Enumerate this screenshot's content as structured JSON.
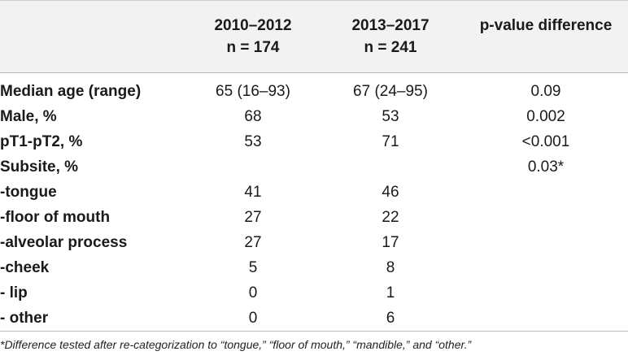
{
  "table": {
    "headers": [
      {
        "line1": "",
        "line2": ""
      },
      {
        "line1": "2010–2012",
        "line2": "n = 174"
      },
      {
        "line1": "2013–2017",
        "line2": "n = 241"
      },
      {
        "line1": "p-value difference",
        "line2": ""
      }
    ],
    "rows": [
      {
        "label": "Median age (range)",
        "a": "65 (16–93)",
        "b": "67 (24–95)",
        "p": "0.09"
      },
      {
        "label": "Male, %",
        "a": "68",
        "b": "53",
        "p": "0.002"
      },
      {
        "label": "pT1-pT2, %",
        "a": "53",
        "b": "71",
        "p": "<0.001"
      },
      {
        "label": "Subsite, %",
        "a": "",
        "b": "",
        "p": "0.03*"
      },
      {
        "label": "-tongue",
        "a": "41",
        "b": "46",
        "p": ""
      },
      {
        "label": "-floor of mouth",
        "a": "27",
        "b": "22",
        "p": ""
      },
      {
        "label": "-alveolar process",
        "a": "27",
        "b": "17",
        "p": ""
      },
      {
        "label": "-cheek",
        "a": "5",
        "b": "8",
        "p": ""
      },
      {
        "label": "- lip",
        "a": "0",
        "b": "1",
        "p": ""
      },
      {
        "label": "- other",
        "a": "0",
        "b": "6",
        "p": ""
      }
    ]
  },
  "footnote": "*Difference tested after re-categorization to “tongue,” “floor of mouth,” “mandible,” and “other.”"
}
